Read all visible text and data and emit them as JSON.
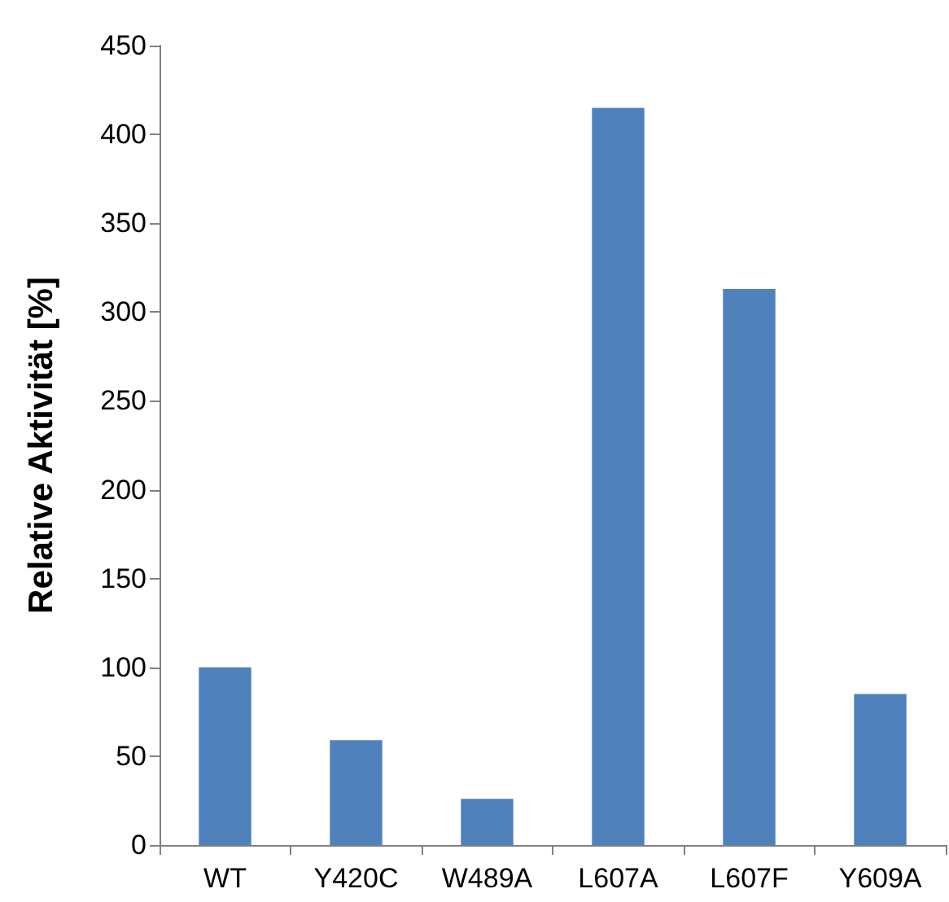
{
  "chart_data": {
    "type": "bar",
    "ylabel": "Relative Aktivität [%]",
    "categories": [
      "WT",
      "Y420C",
      "W489A",
      "L607A",
      "L607F",
      "Y609A"
    ],
    "values": [
      100,
      59,
      26,
      415,
      313,
      85
    ],
    "color": "#4f81bd",
    "ylim": [
      0,
      450
    ],
    "yticks": [
      0,
      50,
      100,
      150,
      200,
      250,
      300,
      350,
      400,
      450
    ],
    "grid": false
  }
}
